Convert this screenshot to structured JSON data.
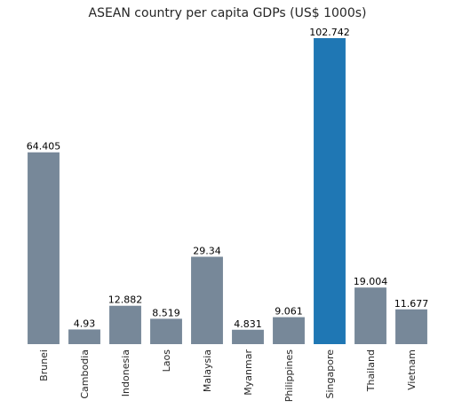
{
  "chart_data": {
    "type": "bar",
    "title": "ASEAN country per capita GDPs (US$ 1000s)",
    "xlabel": "",
    "ylabel": "",
    "categories": [
      "Brunei",
      "Cambodia",
      "Indonesia",
      "Laos",
      "Malaysia",
      "Myanmar",
      "Philippines",
      "Singapore",
      "Thailand",
      "Vietnam"
    ],
    "values": [
      64.405,
      4.93,
      12.882,
      8.519,
      29.34,
      4.831,
      9.061,
      102.742,
      19.004,
      11.677
    ],
    "data_labels": [
      "64.405",
      "4.93",
      "12.882",
      "8.519",
      "29.34",
      "4.831",
      "9.061",
      "102.742",
      "19.004",
      "11.677"
    ],
    "ylim": [
      0,
      102.742
    ],
    "grid": false,
    "highlight_category": "Singapore",
    "colors": {
      "default": "#778899",
      "highlight": "#1f77b4"
    }
  }
}
